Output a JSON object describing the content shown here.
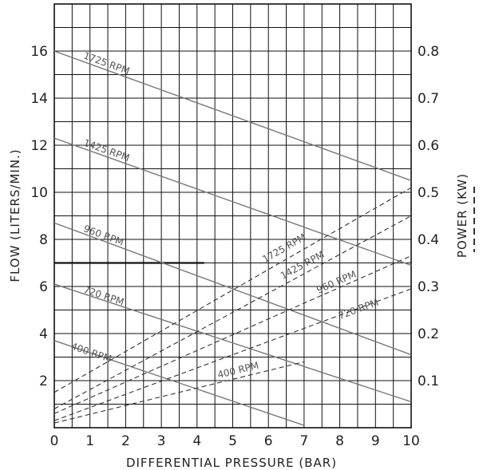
{
  "chart_data": {
    "type": "line",
    "xlabel": "DIFFERENTIAL PRESSURE (BAR)",
    "ylabel": "FLOW (LITERS/MIN.)",
    "y2label": "POWER (KW)",
    "xlim": [
      0,
      10
    ],
    "ylim": [
      0,
      18
    ],
    "y2lim": [
      0,
      0.9
    ],
    "x_ticks": [
      0,
      1,
      2,
      3,
      4,
      5,
      6,
      7,
      8,
      9,
      10
    ],
    "y_ticks": [
      2,
      4,
      6,
      8,
      10,
      12,
      14,
      16
    ],
    "y_tick_labels": [
      "2",
      "4",
      "6",
      "8",
      "10",
      "12",
      "14",
      "16"
    ],
    "y2_ticks": [
      0.1,
      0.2,
      0.3,
      0.4,
      0.5,
      0.6,
      0.7,
      0.8
    ],
    "y2_tick_labels": [
      "0.1",
      "0.2",
      "0.3",
      "0.4",
      "0.5",
      "0.6",
      "0.7",
      "0.8"
    ],
    "grid": true,
    "grid_minor_x": 0.5,
    "grid_minor_y": 1,
    "reference_line": {
      "y": 7,
      "x": [
        0,
        4.2
      ]
    },
    "flow_series": [
      {
        "name": "1725 RPM",
        "x": [
          0,
          10
        ],
        "y": [
          16.0,
          10.5
        ],
        "label_at": [
          0.8,
          15.7
        ]
      },
      {
        "name": "1425 RPM",
        "x": [
          0,
          10
        ],
        "y": [
          12.3,
          6.9
        ],
        "label_at": [
          0.8,
          12.0
        ]
      },
      {
        "name": "960 RPM",
        "x": [
          0,
          10
        ],
        "y": [
          8.7,
          3.1
        ],
        "label_at": [
          0.8,
          8.35
        ]
      },
      {
        "name": "720 RPM",
        "x": [
          0,
          10
        ],
        "y": [
          6.1,
          1.1
        ],
        "label_at": [
          0.8,
          5.75
        ]
      },
      {
        "name": "400 RPM",
        "x": [
          0,
          7
        ],
        "y": [
          3.7,
          0.1
        ],
        "label_at": [
          0.45,
          3.35
        ]
      }
    ],
    "power_series": [
      {
        "name": "1725 RPM",
        "x": [
          0,
          10
        ],
        "y": [
          0.075,
          0.51
        ],
        "label_at": [
          5.9,
          0.35
        ]
      },
      {
        "name": "1425 RPM",
        "x": [
          0,
          10
        ],
        "y": [
          0.04,
          0.45
        ],
        "label_at": [
          6.4,
          0.315
        ]
      },
      {
        "name": "960 RPM",
        "x": [
          0,
          10
        ],
        "y": [
          0.03,
          0.365
        ],
        "label_at": [
          7.4,
          0.285
        ]
      },
      {
        "name": "720 RPM",
        "x": [
          0,
          10
        ],
        "y": [
          0.015,
          0.295
        ],
        "label_at": [
          8.0,
          0.23
        ]
      },
      {
        "name": "400 RPM",
        "x": [
          0,
          7
        ],
        "y": [
          0.01,
          0.14
        ],
        "label_at": [
          4.6,
          0.105
        ]
      }
    ]
  }
}
